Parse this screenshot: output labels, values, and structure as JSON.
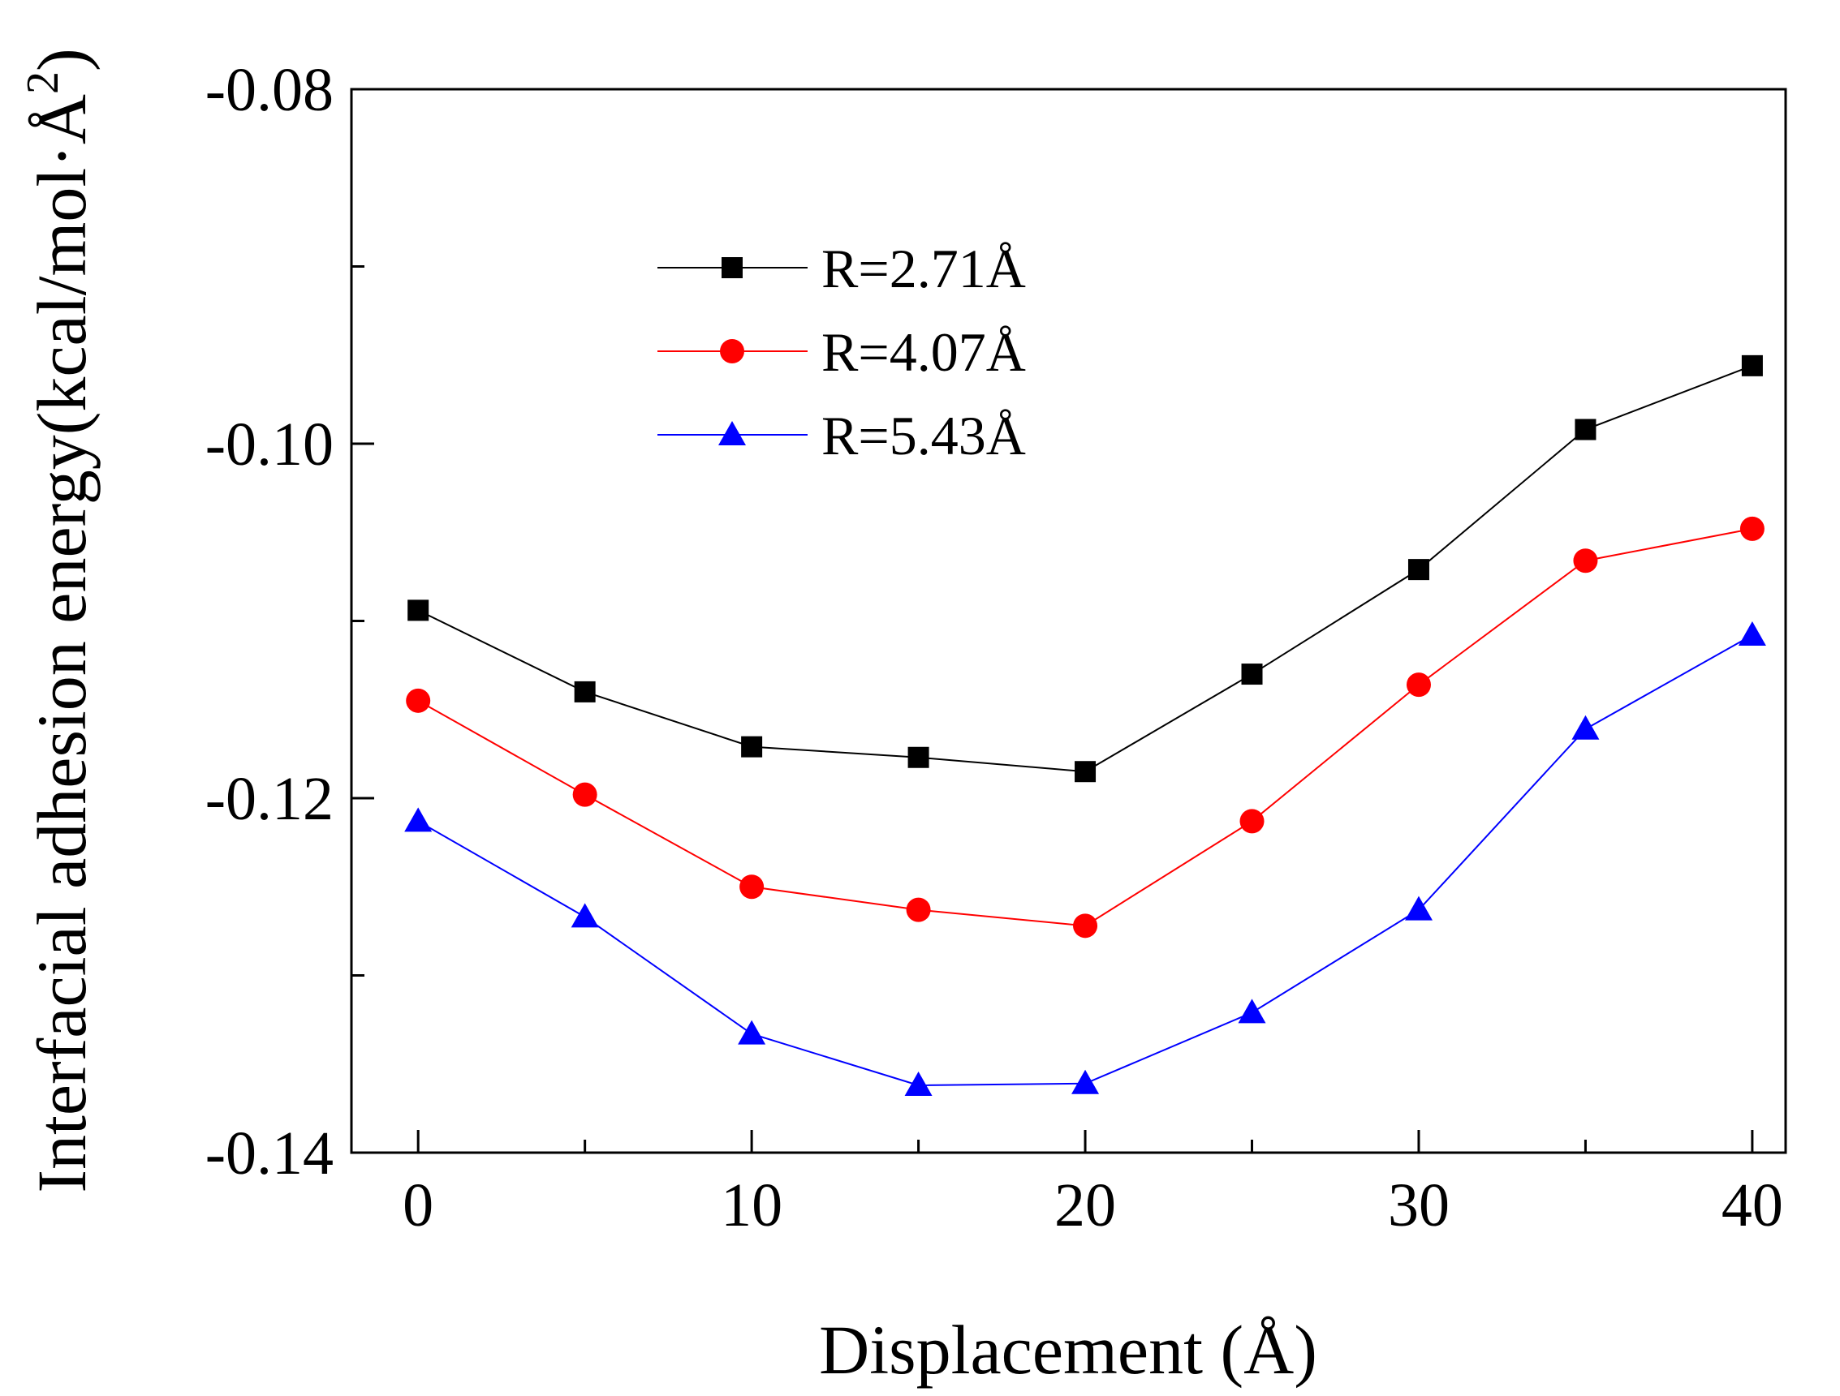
{
  "chart_data": {
    "type": "line",
    "title": "",
    "xlabel": "Displacement (Å)",
    "ylabel": "Interfacial adhesion energy(kcal/mol·Å",
    "ylabel_superscript": "2",
    "ylabel_close": ")",
    "x": [
      0,
      5,
      10,
      15,
      20,
      25,
      30,
      35,
      40
    ],
    "xlim": [
      -2,
      41
    ],
    "ylim": [
      -0.14,
      -0.08
    ],
    "xticks": [
      0,
      10,
      20,
      30,
      40
    ],
    "xtick_labels": [
      "0",
      "10",
      "20",
      "30",
      "40"
    ],
    "yticks": [
      -0.14,
      -0.12,
      -0.1,
      -0.08
    ],
    "ytick_labels": [
      "-0.14",
      "-0.12",
      "-0.10",
      "-0.08"
    ],
    "grid": false,
    "legend_position": "upper-left",
    "series": [
      {
        "name": "R=2.71Å",
        "color": "#000000",
        "marker": "square",
        "values": [
          -0.1094,
          -0.114,
          -0.1171,
          -0.1177,
          -0.1185,
          -0.113,
          -0.1071,
          -0.0992,
          -0.0956
        ]
      },
      {
        "name": "R=4.07Å",
        "color": "#ff0000",
        "marker": "circle",
        "values": [
          -0.1145,
          -0.1198,
          -0.125,
          -0.1263,
          -0.1272,
          -0.1213,
          -0.1136,
          -0.1066,
          -0.1048
        ]
      },
      {
        "name": "R=5.43Å",
        "color": "#0000ff",
        "marker": "triangle",
        "values": [
          -0.1213,
          -0.1267,
          -0.1333,
          -0.1362,
          -0.1361,
          -0.1321,
          -0.1263,
          -0.1161,
          -0.1108
        ]
      }
    ]
  }
}
